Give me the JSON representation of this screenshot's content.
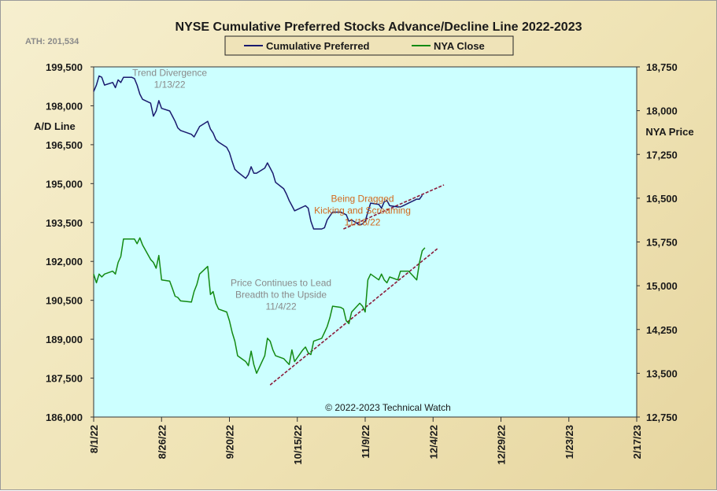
{
  "chart_data": {
    "type": "line",
    "title": "NYSE Cumulative  Preferred Stocks Advance/Decline  Line 2022-2023",
    "ath_label": "ATH: 201,534",
    "copyright": "© 2022-2023  Technical  Watch",
    "left_axis": {
      "label": "A/D Line",
      "ylim": [
        186000,
        199500
      ],
      "ticks": [
        186000,
        187500,
        189000,
        190500,
        192000,
        193500,
        195000,
        196500,
        198000,
        199500
      ],
      "tick_labels": [
        "186,000",
        "187,500",
        "189,000",
        "190,500",
        "192,000",
        "193,500",
        "195,000",
        "196,500",
        "198,000",
        "199,500"
      ]
    },
    "right_axis": {
      "label": "NYA Price",
      "ylim": [
        12750,
        18750
      ],
      "ticks": [
        12750,
        13500,
        14250,
        15000,
        15750,
        16500,
        17250,
        18000,
        18750
      ],
      "tick_labels": [
        "12,750",
        "13,500",
        "14,250",
        "15,000",
        "15,750",
        "16,500",
        "17,250",
        "18,000",
        "18,750"
      ]
    },
    "x_axis": {
      "start": "2022-08-01",
      "end": "2023-02-17",
      "ticks": [
        "2022-08-01",
        "2022-08-26",
        "2022-09-20",
        "2022-10-15",
        "2022-11-09",
        "2022-12-04",
        "2022-12-29",
        "2023-01-23",
        "2023-02-17"
      ],
      "tick_labels": [
        "8/1/22",
        "8/26/22",
        "9/20/22",
        "10/15/22",
        "11/9/22",
        "12/4/22",
        "12/29/22",
        "1/23/23",
        "2/17/23"
      ]
    },
    "legend": {
      "placement": "top-center",
      "entries": [
        {
          "name": "Cumulative Preferred",
          "color": "#1a1a6e"
        },
        {
          "name": "NYA Close",
          "color": "#138a13"
        }
      ]
    },
    "colors": {
      "plot_bg": "#ccffff",
      "ad_line": "#1a1a6e",
      "nya_line": "#138a13",
      "trend_line": "#8b1a3a",
      "annotation_gray": "#8a8a8a",
      "annotation_orange": "#d2691e"
    },
    "series": [
      {
        "name": "Cumulative Preferred",
        "axis": "left",
        "points": [
          [
            "2022-08-01",
            198550
          ],
          [
            "2022-08-02",
            198800
          ],
          [
            "2022-08-03",
            199150
          ],
          [
            "2022-08-04",
            199100
          ],
          [
            "2022-08-05",
            198800
          ],
          [
            "2022-08-08",
            198900
          ],
          [
            "2022-08-09",
            198700
          ],
          [
            "2022-08-10",
            199000
          ],
          [
            "2022-08-11",
            198900
          ],
          [
            "2022-08-12",
            199100
          ],
          [
            "2022-08-15",
            199100
          ],
          [
            "2022-08-16",
            199050
          ],
          [
            "2022-08-17",
            198800
          ],
          [
            "2022-08-18",
            198450
          ],
          [
            "2022-08-19",
            198250
          ],
          [
            "2022-08-22",
            198100
          ],
          [
            "2022-08-23",
            197600
          ],
          [
            "2022-08-24",
            197800
          ],
          [
            "2022-08-25",
            198200
          ],
          [
            "2022-08-26",
            197900
          ],
          [
            "2022-08-29",
            197800
          ],
          [
            "2022-08-30",
            197600
          ],
          [
            "2022-08-31",
            197400
          ],
          [
            "2022-09-01",
            197150
          ],
          [
            "2022-09-02",
            197050
          ],
          [
            "2022-09-06",
            196900
          ],
          [
            "2022-09-07",
            196800
          ],
          [
            "2022-09-08",
            197000
          ],
          [
            "2022-09-09",
            197200
          ],
          [
            "2022-09-12",
            197400
          ],
          [
            "2022-09-13",
            197100
          ],
          [
            "2022-09-14",
            196950
          ],
          [
            "2022-09-15",
            196700
          ],
          [
            "2022-09-16",
            196600
          ],
          [
            "2022-09-19",
            196400
          ],
          [
            "2022-09-20",
            196200
          ],
          [
            "2022-09-21",
            195850
          ],
          [
            "2022-09-22",
            195550
          ],
          [
            "2022-09-23",
            195450
          ],
          [
            "2022-09-26",
            195200
          ],
          [
            "2022-09-27",
            195350
          ],
          [
            "2022-09-28",
            195650
          ],
          [
            "2022-09-29",
            195400
          ],
          [
            "2022-09-30",
            195400
          ],
          [
            "2022-10-03",
            195600
          ],
          [
            "2022-10-04",
            195800
          ],
          [
            "2022-10-05",
            195600
          ],
          [
            "2022-10-06",
            195400
          ],
          [
            "2022-10-07",
            195050
          ],
          [
            "2022-10-10",
            194800
          ],
          [
            "2022-10-11",
            194600
          ],
          [
            "2022-10-12",
            194350
          ],
          [
            "2022-10-13",
            194150
          ],
          [
            "2022-10-14",
            193950
          ],
          [
            "2022-10-17",
            194100
          ],
          [
            "2022-10-18",
            194150
          ],
          [
            "2022-10-19",
            194050
          ],
          [
            "2022-10-20",
            193550
          ],
          [
            "2022-10-21",
            193250
          ],
          [
            "2022-10-24",
            193250
          ],
          [
            "2022-10-25",
            193300
          ],
          [
            "2022-10-26",
            193600
          ],
          [
            "2022-10-27",
            193750
          ],
          [
            "2022-10-28",
            193900
          ],
          [
            "2022-10-31",
            193900
          ],
          [
            "2022-11-01",
            193850
          ],
          [
            "2022-11-02",
            193800
          ],
          [
            "2022-11-03",
            193550
          ],
          [
            "2022-11-04",
            193600
          ],
          [
            "2022-11-07",
            193400
          ],
          [
            "2022-11-08",
            193450
          ],
          [
            "2022-11-09",
            193550
          ],
          [
            "2022-11-10",
            193900
          ],
          [
            "2022-11-11",
            194250
          ],
          [
            "2022-11-14",
            194200
          ],
          [
            "2022-11-15",
            194050
          ],
          [
            "2022-11-16",
            194300
          ],
          [
            "2022-11-17",
            194350
          ],
          [
            "2022-11-18",
            194150
          ],
          [
            "2022-11-21",
            194100
          ],
          [
            "2022-11-22",
            194100
          ],
          [
            "2022-11-23",
            194150
          ],
          [
            "2022-11-25",
            194250
          ],
          [
            "2022-11-28",
            194400
          ],
          [
            "2022-11-29",
            194400
          ],
          [
            "2022-11-30",
            194550
          ]
        ]
      },
      {
        "name": "NYA Close",
        "axis": "right",
        "points": [
          [
            "2022-08-01",
            15200
          ],
          [
            "2022-08-02",
            15050
          ],
          [
            "2022-08-03",
            15200
          ],
          [
            "2022-08-04",
            15150
          ],
          [
            "2022-08-05",
            15200
          ],
          [
            "2022-08-08",
            15250
          ],
          [
            "2022-08-09",
            15200
          ],
          [
            "2022-08-10",
            15400
          ],
          [
            "2022-08-11",
            15500
          ],
          [
            "2022-08-12",
            15800
          ],
          [
            "2022-08-15",
            15800
          ],
          [
            "2022-08-16",
            15800
          ],
          [
            "2022-08-17",
            15720
          ],
          [
            "2022-08-18",
            15820
          ],
          [
            "2022-08-19",
            15700
          ],
          [
            "2022-08-22",
            15450
          ],
          [
            "2022-08-23",
            15400
          ],
          [
            "2022-08-24",
            15300
          ],
          [
            "2022-08-25",
            15520
          ],
          [
            "2022-08-26",
            15100
          ],
          [
            "2022-08-29",
            15080
          ],
          [
            "2022-08-30",
            14950
          ],
          [
            "2022-08-31",
            14820
          ],
          [
            "2022-09-01",
            14800
          ],
          [
            "2022-09-02",
            14740
          ],
          [
            "2022-09-06",
            14720
          ],
          [
            "2022-09-07",
            14900
          ],
          [
            "2022-09-08",
            15020
          ],
          [
            "2022-09-09",
            15200
          ],
          [
            "2022-09-12",
            15330
          ],
          [
            "2022-09-13",
            14850
          ],
          [
            "2022-09-14",
            14900
          ],
          [
            "2022-09-15",
            14700
          ],
          [
            "2022-09-16",
            14600
          ],
          [
            "2022-09-19",
            14550
          ],
          [
            "2022-09-20",
            14400
          ],
          [
            "2022-09-21",
            14200
          ],
          [
            "2022-09-22",
            14050
          ],
          [
            "2022-09-23",
            13800
          ],
          [
            "2022-09-26",
            13700
          ],
          [
            "2022-09-27",
            13630
          ],
          [
            "2022-09-28",
            13880
          ],
          [
            "2022-09-29",
            13650
          ],
          [
            "2022-09-30",
            13500
          ],
          [
            "2022-10-03",
            13800
          ],
          [
            "2022-10-04",
            14100
          ],
          [
            "2022-10-05",
            14050
          ],
          [
            "2022-10-06",
            13900
          ],
          [
            "2022-10-07",
            13800
          ],
          [
            "2022-10-10",
            13750
          ],
          [
            "2022-10-11",
            13700
          ],
          [
            "2022-10-12",
            13650
          ],
          [
            "2022-10-13",
            13900
          ],
          [
            "2022-10-14",
            13700
          ],
          [
            "2022-10-17",
            13900
          ],
          [
            "2022-10-18",
            13950
          ],
          [
            "2022-10-19",
            13850
          ],
          [
            "2022-10-20",
            13820
          ],
          [
            "2022-10-21",
            14050
          ],
          [
            "2022-10-24",
            14100
          ],
          [
            "2022-10-25",
            14200
          ],
          [
            "2022-10-26",
            14300
          ],
          [
            "2022-10-27",
            14450
          ],
          [
            "2022-10-28",
            14650
          ],
          [
            "2022-10-31",
            14630
          ],
          [
            "2022-11-01",
            14600
          ],
          [
            "2022-11-02",
            14400
          ],
          [
            "2022-11-03",
            14350
          ],
          [
            "2022-11-04",
            14550
          ],
          [
            "2022-11-07",
            14700
          ],
          [
            "2022-11-08",
            14650
          ],
          [
            "2022-11-09",
            14550
          ],
          [
            "2022-11-10",
            15100
          ],
          [
            "2022-11-11",
            15200
          ],
          [
            "2022-11-14",
            15100
          ],
          [
            "2022-11-15",
            15200
          ],
          [
            "2022-11-16",
            15100
          ],
          [
            "2022-11-17",
            15050
          ],
          [
            "2022-11-18",
            15150
          ],
          [
            "2022-11-21",
            15100
          ],
          [
            "2022-11-22",
            15250
          ],
          [
            "2022-11-23",
            15250
          ],
          [
            "2022-11-25",
            15250
          ],
          [
            "2022-11-28",
            15100
          ],
          [
            "2022-11-29",
            15400
          ],
          [
            "2022-11-30",
            15600
          ],
          [
            "2022-12-01",
            15650
          ]
        ]
      }
    ],
    "trend_lines": [
      {
        "axis": "left",
        "from": [
          "2022-11-01",
          193250
        ],
        "to": [
          "2022-12-08",
          194950
        ]
      },
      {
        "axis": "right",
        "from": [
          "2022-10-05",
          13300
        ],
        "to": [
          "2022-12-06",
          15650
        ]
      }
    ],
    "annotations": [
      {
        "lines": [
          "Trend  Divergence",
          "1/13/22"
        ],
        "color": "gray",
        "anchor": [
          "2022-08-29",
          199150
        ],
        "axis": "left"
      },
      {
        "lines": [
          "Being  Dragged",
          "Kicking and  Screaming",
          "11/18/22"
        ],
        "color": "orange",
        "anchor": [
          "2022-11-08",
          194300
        ],
        "axis": "left"
      },
      {
        "lines": [
          "Price  Continues  to  Lead",
          "Breadth  to the Upside",
          "11/4/22"
        ],
        "color": "gray",
        "anchor": [
          "2022-10-09",
          191050
        ],
        "axis": "left"
      }
    ]
  }
}
